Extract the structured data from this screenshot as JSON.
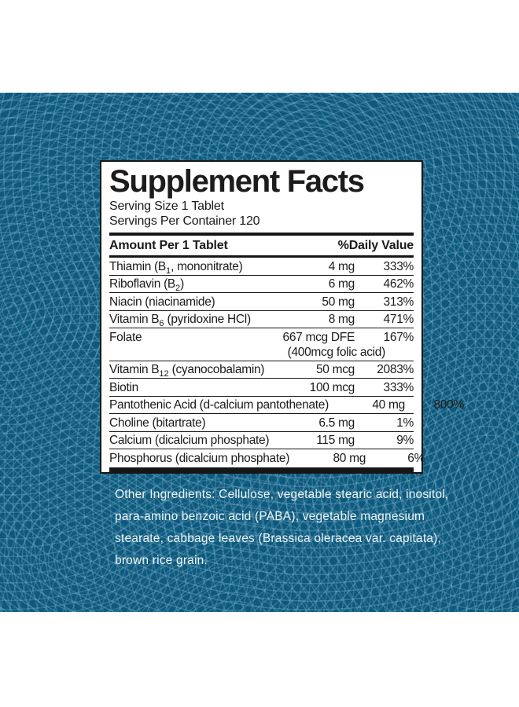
{
  "panel": {
    "title": "Supplement Facts",
    "serving_size": "Serving Size 1 Tablet",
    "servings_per_container": "Servings Per Container 120",
    "header": {
      "amount_label": "Amount Per 1 Tablet",
      "dv_label": "%Daily Value"
    },
    "rows": [
      {
        "name_pre": "Thiamin (B",
        "name_sub": "1",
        "name_post": ", mononitrate)",
        "amount": "4 mg",
        "dv": "333%"
      },
      {
        "name_pre": "Riboflavin (B",
        "name_sub": "2",
        "name_post": ")",
        "amount": "6 mg",
        "dv": "462%"
      },
      {
        "name_pre": "Niacin (niacinamide)",
        "amount": "50 mg",
        "dv": "313%"
      },
      {
        "name_pre": "Vitamin B",
        "name_sub": "6",
        "name_post": " (pyridoxine HCl)",
        "amount": "8 mg",
        "dv": "471%"
      },
      {
        "name_pre": "Folate",
        "amount": "667 mcg DFE",
        "dv": "167%",
        "amount_note": "(400mcg folic acid)"
      },
      {
        "name_pre": "Vitamin B",
        "name_sub": "12",
        "name_post": " (cyanocobalamin)",
        "amount": "50 mcg",
        "dv": "2083%"
      },
      {
        "name_pre": "Biotin",
        "amount": "100 mcg",
        "dv": "333%"
      },
      {
        "name_pre": "Pantothenic Acid (d-calcium pantothenate)",
        "amount": "40 mg",
        "dv": "800%"
      },
      {
        "name_pre": "Choline (bitartrate)",
        "amount": "6.5 mg",
        "dv": "1%"
      },
      {
        "name_pre": "Calcium (dicalcium phosphate)",
        "amount": "115 mg",
        "dv": "9%"
      },
      {
        "name_pre": "Phosphorus (dicalcium phosphate)",
        "amount": "80 mg",
        "dv": "6%"
      }
    ]
  },
  "other_ingredients": {
    "lines": [
      "Other Ingredients: Cellulose, vegetable stearic acid, inositol,",
      "para-amino benzoic acid (PABA), vegetable magnesium",
      "stearate, cabbage leaves (Brassica oleracea var. capitata),",
      "brown rice grain."
    ]
  },
  "colors": {
    "background_blue": "#0e5a7e",
    "pattern_ring": "#3f7d9e",
    "panel_background": "#ffffff",
    "panel_border": "#161616",
    "text_dark": "#1a1a1a",
    "text_light": "#eef5f8"
  }
}
